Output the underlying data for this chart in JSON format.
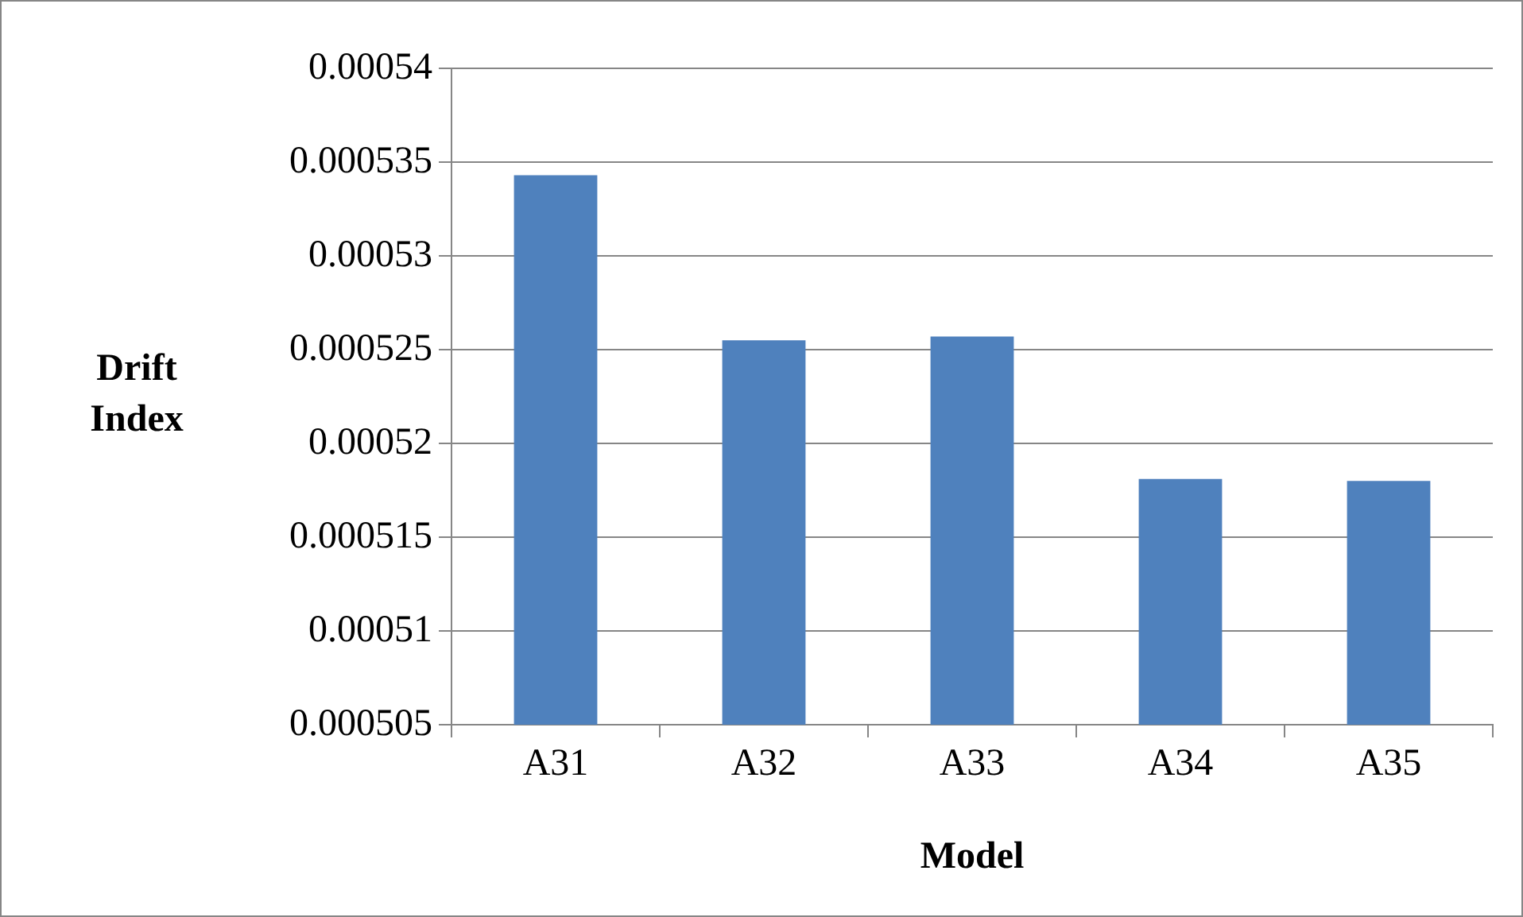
{
  "chart_data": {
    "type": "bar",
    "xlabel": "Model",
    "ylabel": "Drift Index",
    "categories": [
      "A31",
      "A32",
      "A33",
      "A34",
      "A35"
    ],
    "values": [
      0.0005343,
      0.0005255,
      0.0005257,
      0.0005181,
      0.000518
    ],
    "color": "#4f81bd",
    "ylim": [
      0.000505,
      0.00054
    ],
    "yticks": [
      0.000505,
      0.00051,
      0.000515,
      0.00052,
      0.000525,
      0.00053,
      0.000535,
      0.00054
    ],
    "grid": "y",
    "legend": false
  }
}
